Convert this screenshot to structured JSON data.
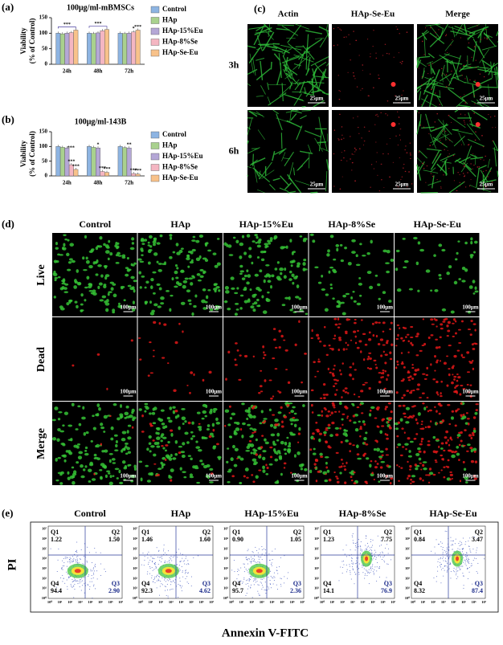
{
  "chart_data": [
    {
      "type": "bar",
      "label": "(a)",
      "title": "100μg/ml-mBMSCs",
      "ylabel": [
        "Viability",
        "(% of Control)"
      ],
      "categories": [
        "24h",
        "48h",
        "72h"
      ],
      "ylim": [
        0,
        150
      ],
      "yticks": [
        0,
        50,
        100,
        150
      ],
      "series": [
        {
          "name": "Control",
          "color": "#8db4e2",
          "values": [
            100,
            100,
            100
          ]
        },
        {
          "name": "HAp",
          "color": "#a9d18e",
          "values": [
            98,
            99,
            99
          ]
        },
        {
          "name": "HAp-15%Eu",
          "color": "#b4a7d6",
          "values": [
            100,
            101,
            100
          ]
        },
        {
          "name": "HAp-8%Se",
          "color": "#f4b6c2",
          "values": [
            102,
            108,
            104
          ]
        },
        {
          "name": "HAp-Se-Eu",
          "color": "#f8c28a",
          "values": [
            110,
            112,
            110
          ]
        }
      ],
      "annotations": [
        "***",
        "***",
        "*",
        "***"
      ]
    },
    {
      "type": "bar",
      "label": "(b)",
      "title": "100μg/ml-143B",
      "ylabel": [
        "Viability",
        "(% of Control)"
      ],
      "categories": [
        "24h",
        "48h",
        "72h"
      ],
      "ylim": [
        0,
        150
      ],
      "yticks": [
        0,
        50,
        100,
        150
      ],
      "series": [
        {
          "name": "Control",
          "color": "#8db4e2",
          "values": [
            100,
            100,
            100
          ]
        },
        {
          "name": "HAp",
          "color": "#a9d18e",
          "values": [
            97,
            97,
            96
          ]
        },
        {
          "name": "HAp-15%Eu",
          "color": "#b4a7d6",
          "values": [
            95,
            95,
            95
          ]
        },
        {
          "name": "HAp-8%Se",
          "color": "#f4b6c2",
          "values": [
            38,
            15,
            8
          ]
        },
        {
          "name": "HAp-Se-Eu",
          "color": "#f8c28a",
          "values": [
            22,
            12,
            6
          ]
        }
      ],
      "annotations": [
        "***",
        "***",
        "***",
        "*",
        "***",
        "***",
        "**",
        "***",
        "***"
      ]
    }
  ],
  "panel_c": {
    "label": "(c)",
    "columns": [
      "Actin",
      "HAp-Se-Eu",
      "Merge"
    ],
    "rows": [
      "3h",
      "6h"
    ],
    "scale_bar": "25μm"
  },
  "panel_d": {
    "label": "(d)",
    "columns": [
      "Control",
      "HAp",
      "HAp-15%Eu",
      "HAp-8%Se",
      "HAp-Se-Eu"
    ],
    "rows": [
      "Live",
      "Dead",
      "Merge"
    ],
    "scale_bar": "100μm"
  },
  "panel_e": {
    "label": "(e)",
    "columns": [
      "Control",
      "HAp",
      "HAp-15%Eu",
      "HAp-8%Se",
      "HAp-Se-Eu"
    ],
    "quadrants": [
      "Q1",
      "Q2",
      "Q3",
      "Q4"
    ],
    "values": [
      [
        "1.22",
        "1.50",
        "2.90",
        "94.4"
      ],
      [
        "1.46",
        "1.60",
        "4.62",
        "92.3"
      ],
      [
        "0.90",
        "1.05",
        "2.36",
        "95.7"
      ],
      [
        "1.23",
        "7.75",
        "76.9",
        "14.1"
      ],
      [
        "0.84",
        "3.47",
        "87.4",
        "8.32"
      ]
    ],
    "ticks": [
      "10⁰",
      "10¹",
      "10²",
      "10³",
      "10⁴",
      "10⁵",
      "10⁶",
      "10⁷"
    ],
    "y_label": "PI",
    "x_label": "Annexin V-FITC"
  }
}
